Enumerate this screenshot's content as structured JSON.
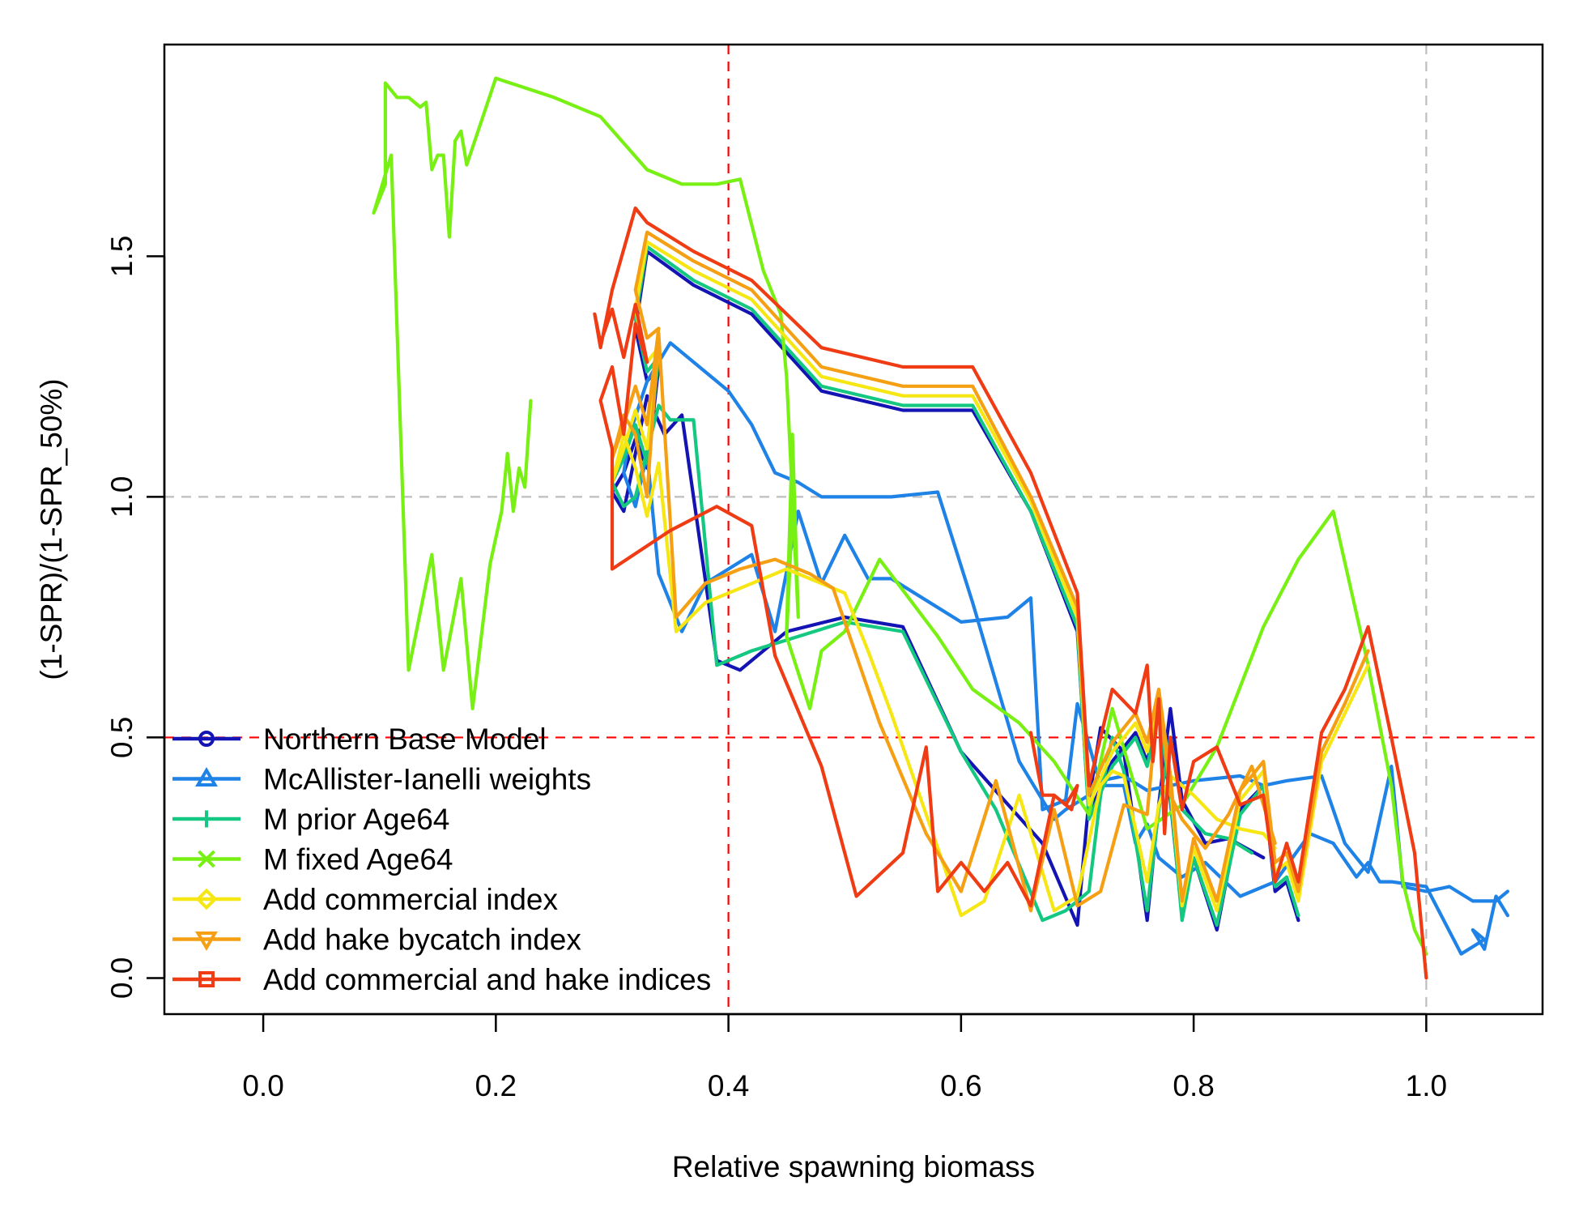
{
  "chart_data": {
    "type": "line",
    "title": "",
    "xlabel": "Relative spawning biomass",
    "ylabel": "(1-SPR)/(1-SPR_50%)",
    "xlim": [
      -0.085,
      1.1
    ],
    "ylim": [
      -0.075,
      1.94
    ],
    "xticks": [
      0.0,
      0.2,
      0.4,
      0.6,
      0.8,
      1.0
    ],
    "xtick_labels": [
      "0.0",
      "0.2",
      "0.4",
      "0.6",
      "0.8",
      "1.0"
    ],
    "yticks": [
      0.0,
      0.5,
      1.0,
      1.5
    ],
    "ytick_labels": [
      "0.0",
      "0.5",
      "1.0",
      "1.5"
    ],
    "grid": false,
    "reference_lines": [
      {
        "axis": "x",
        "value": 0.4,
        "color": "#ff0000",
        "style": "dashed"
      },
      {
        "axis": "y",
        "value": 0.5,
        "color": "#ff0000",
        "style": "dashed"
      },
      {
        "axis": "x",
        "value": 1.0,
        "color": "#bebebe",
        "style": "dashed"
      },
      {
        "axis": "y",
        "value": 1.0,
        "color": "#bebebe",
        "style": "dashed"
      }
    ],
    "legend_position": "bottom-left",
    "series": [
      {
        "name": "Northern Base Model",
        "color": "#1414b4",
        "marker": "circle",
        "x": [
          0.86,
          0.83,
          0.81,
          0.79,
          0.78,
          0.77,
          0.76,
          0.74,
          0.72,
          0.71,
          0.7,
          0.67,
          0.6,
          0.55,
          0.5,
          0.45,
          0.41,
          0.39,
          0.36,
          0.345,
          0.33,
          0.31,
          0.3,
          0.31,
          0.32,
          0.33,
          0.34,
          0.33,
          0.32,
          0.33,
          0.37,
          0.42,
          0.48,
          0.55,
          0.61,
          0.66,
          0.7,
          0.71,
          0.73,
          0.75,
          0.76,
          0.77,
          0.78,
          0.79,
          0.8,
          0.82,
          0.84,
          0.86,
          0.87,
          0.88,
          0.89
        ],
        "y": [
          0.25,
          0.29,
          0.28,
          0.37,
          0.56,
          0.36,
          0.12,
          0.47,
          0.52,
          0.37,
          0.11,
          0.28,
          0.47,
          0.73,
          0.75,
          0.72,
          0.64,
          0.66,
          1.17,
          1.13,
          1.21,
          0.97,
          1.01,
          1.05,
          1.12,
          1.06,
          1.27,
          1.24,
          1.35,
          1.51,
          1.44,
          1.38,
          1.22,
          1.18,
          1.18,
          0.97,
          0.72,
          0.34,
          0.45,
          0.51,
          0.45,
          0.55,
          0.37,
          0.13,
          0.25,
          0.1,
          0.35,
          0.4,
          0.18,
          0.2,
          0.12
        ]
      },
      {
        "name": "McAllister-Ianelli weights",
        "color": "#1e82e6",
        "marker": "triangle",
        "x": [
          1.07,
          1.06,
          1.05,
          1.04,
          1.05,
          1.03,
          1.0,
          0.97,
          0.96,
          0.95,
          0.94,
          0.92,
          0.9,
          0.87,
          0.84,
          0.81,
          0.79,
          0.77,
          0.76,
          0.75,
          0.74,
          0.72,
          0.7,
          0.69,
          0.67,
          0.66,
          0.64,
          0.6,
          0.56,
          0.54,
          0.52,
          0.5,
          0.48,
          0.46,
          0.44,
          0.42,
          0.38,
          0.36,
          0.34,
          0.33,
          0.32,
          0.31,
          0.315,
          0.33,
          0.35,
          0.4,
          0.42,
          0.44,
          0.46,
          0.48,
          0.54,
          0.58,
          0.61,
          0.65,
          0.68,
          0.69,
          0.71,
          0.72,
          0.74,
          0.76,
          0.78,
          0.8,
          0.84,
          0.86,
          0.88,
          0.91,
          0.93,
          0.95,
          0.97,
          0.98,
          1.0,
          1.02,
          1.04,
          1.06,
          1.07
        ],
        "y": [
          0.13,
          0.17,
          0.06,
          0.1,
          0.08,
          0.05,
          0.19,
          0.2,
          0.2,
          0.24,
          0.21,
          0.28,
          0.3,
          0.2,
          0.17,
          0.24,
          0.21,
          0.25,
          0.32,
          0.28,
          0.4,
          0.4,
          0.57,
          0.37,
          0.35,
          0.79,
          0.75,
          0.74,
          0.8,
          0.83,
          0.83,
          0.92,
          0.82,
          0.97,
          0.72,
          0.88,
          0.82,
          0.72,
          0.84,
          1.09,
          0.98,
          1.05,
          1.13,
          1.24,
          1.32,
          1.22,
          1.15,
          1.05,
          1.03,
          1.0,
          1.0,
          1.01,
          0.78,
          0.45,
          0.33,
          0.35,
          0.38,
          0.41,
          0.42,
          0.39,
          0.4,
          0.41,
          0.42,
          0.4,
          0.41,
          0.42,
          0.28,
          0.22,
          0.44,
          0.19,
          0.18,
          0.19,
          0.16,
          0.16,
          0.18
        ]
      },
      {
        "name": "M prior Age64",
        "color": "#14c882",
        "marker": "plus",
        "x": [
          0.85,
          0.83,
          0.81,
          0.79,
          0.78,
          0.77,
          0.76,
          0.74,
          0.73,
          0.72,
          0.71,
          0.69,
          0.67,
          0.63,
          0.6,
          0.55,
          0.5,
          0.46,
          0.42,
          0.39,
          0.37,
          0.35,
          0.34,
          0.32,
          0.31,
          0.3,
          0.31,
          0.32,
          0.33,
          0.34,
          0.33,
          0.32,
          0.33,
          0.37,
          0.42,
          0.48,
          0.55,
          0.61,
          0.66,
          0.7,
          0.71,
          0.73,
          0.75,
          0.76,
          0.77,
          0.78,
          0.79,
          0.8,
          0.82,
          0.84,
          0.86,
          0.87,
          0.88,
          0.89
        ],
        "y": [
          0.26,
          0.29,
          0.3,
          0.35,
          0.5,
          0.35,
          0.14,
          0.43,
          0.5,
          0.38,
          0.18,
          0.14,
          0.12,
          0.35,
          0.47,
          0.72,
          0.74,
          0.71,
          0.68,
          0.65,
          1.16,
          1.16,
          1.19,
          1.0,
          0.98,
          1.03,
          1.08,
          1.15,
          1.07,
          1.29,
          1.26,
          1.37,
          1.52,
          1.45,
          1.39,
          1.23,
          1.19,
          1.19,
          0.97,
          0.73,
          0.33,
          0.44,
          0.5,
          0.44,
          0.55,
          0.38,
          0.12,
          0.25,
          0.11,
          0.34,
          0.4,
          0.19,
          0.21,
          0.13
        ]
      },
      {
        "name": "M fixed Age64",
        "color": "#78f014",
        "marker": "cross",
        "x": [
          0.23,
          0.225,
          0.22,
          0.215,
          0.21,
          0.205,
          0.195,
          0.18,
          0.17,
          0.155,
          0.145,
          0.125,
          0.11,
          0.095,
          0.105,
          0.105,
          0.115,
          0.125,
          0.135,
          0.14,
          0.145,
          0.15,
          0.155,
          0.16,
          0.165,
          0.17,
          0.175,
          0.2,
          0.25,
          0.29,
          0.33,
          0.36,
          0.39,
          0.41,
          0.43,
          0.445,
          0.45,
          0.46,
          0.455,
          0.45,
          0.455,
          0.45,
          0.47,
          0.48,
          0.5,
          0.53,
          0.58,
          0.61,
          0.65,
          0.68,
          0.71,
          0.72,
          0.73,
          0.76,
          0.79,
          0.82,
          0.86,
          0.89,
          0.92,
          0.95,
          0.97,
          0.98,
          0.99,
          1.0
        ],
        "y": [
          1.2,
          1.02,
          1.06,
          0.97,
          1.09,
          0.97,
          0.86,
          0.56,
          0.83,
          0.64,
          0.88,
          0.64,
          1.71,
          1.59,
          1.65,
          1.86,
          1.83,
          1.83,
          1.81,
          1.82,
          1.68,
          1.71,
          1.71,
          1.54,
          1.74,
          1.76,
          1.69,
          1.87,
          1.83,
          1.79,
          1.68,
          1.65,
          1.65,
          1.66,
          1.47,
          1.38,
          1.25,
          0.75,
          1.13,
          0.72,
          0.97,
          0.71,
          0.56,
          0.68,
          0.72,
          0.87,
          0.71,
          0.6,
          0.53,
          0.45,
          0.34,
          0.45,
          0.56,
          0.31,
          0.36,
          0.48,
          0.73,
          0.87,
          0.97,
          0.65,
          0.4,
          0.2,
          0.1,
          0.05
        ]
      },
      {
        "name": "Add commercial index",
        "color": "#f5e614",
        "marker": "diamond",
        "x": [
          0.87,
          0.86,
          0.84,
          0.82,
          0.8,
          0.78,
          0.77,
          0.76,
          0.74,
          0.73,
          0.72,
          0.7,
          0.68,
          0.65,
          0.62,
          0.6,
          0.57,
          0.54,
          0.52,
          0.5,
          0.48,
          0.45,
          0.42,
          0.38,
          0.355,
          0.34,
          0.33,
          0.32,
          0.31,
          0.3,
          0.31,
          0.32,
          0.33,
          0.34,
          0.33,
          0.32,
          0.33,
          0.37,
          0.42,
          0.48,
          0.55,
          0.61,
          0.66,
          0.7,
          0.71,
          0.73,
          0.75,
          0.76,
          0.77,
          0.78,
          0.79,
          0.8,
          0.82,
          0.84,
          0.86,
          0.87,
          0.88,
          0.89,
          0.91,
          0.93,
          0.95
        ],
        "y": [
          0.27,
          0.3,
          0.31,
          0.33,
          0.38,
          0.42,
          0.36,
          0.2,
          0.42,
          0.43,
          0.4,
          0.17,
          0.14,
          0.38,
          0.16,
          0.13,
          0.34,
          0.55,
          0.68,
          0.8,
          0.82,
          0.85,
          0.82,
          0.78,
          0.72,
          1.07,
          0.96,
          1.06,
          1.13,
          1.03,
          1.1,
          1.18,
          1.1,
          1.31,
          1.28,
          1.39,
          1.53,
          1.47,
          1.41,
          1.25,
          1.21,
          1.21,
          0.99,
          0.75,
          0.36,
          0.47,
          0.53,
          0.47,
          0.58,
          0.4,
          0.15,
          0.27,
          0.14,
          0.37,
          0.43,
          0.22,
          0.24,
          0.16,
          0.45,
          0.55,
          0.65
        ]
      },
      {
        "name": "Add hake bycatch index",
        "color": "#f5a014",
        "marker": "triangle-down",
        "x": [
          0.87,
          0.85,
          0.83,
          0.81,
          0.79,
          0.78,
          0.77,
          0.76,
          0.74,
          0.72,
          0.7,
          0.68,
          0.66,
          0.63,
          0.6,
          0.57,
          0.53,
          0.49,
          0.47,
          0.44,
          0.41,
          0.38,
          0.355,
          0.34,
          0.33,
          0.32,
          0.31,
          0.3,
          0.31,
          0.32,
          0.33,
          0.34,
          0.33,
          0.32,
          0.33,
          0.37,
          0.42,
          0.48,
          0.55,
          0.61,
          0.66,
          0.7,
          0.71,
          0.73,
          0.75,
          0.76,
          0.77,
          0.78,
          0.79,
          0.8,
          0.82,
          0.84,
          0.86,
          0.87,
          0.88,
          0.89,
          0.91,
          0.93,
          0.95
        ],
        "y": [
          0.28,
          0.44,
          0.34,
          0.27,
          0.33,
          0.38,
          0.6,
          0.34,
          0.36,
          0.18,
          0.15,
          0.35,
          0.14,
          0.41,
          0.18,
          0.3,
          0.53,
          0.81,
          0.84,
          0.87,
          0.85,
          0.82,
          0.75,
          1.34,
          1.0,
          1.13,
          1.17,
          1.08,
          1.15,
          1.23,
          1.15,
          1.35,
          1.33,
          1.43,
          1.55,
          1.49,
          1.43,
          1.27,
          1.23,
          1.23,
          1.0,
          0.77,
          0.38,
          0.49,
          0.55,
          0.49,
          0.6,
          0.42,
          0.16,
          0.29,
          0.16,
          0.39,
          0.45,
          0.24,
          0.26,
          0.18,
          0.47,
          0.57,
          0.68
        ]
      },
      {
        "name": "Add commercial and hake indices",
        "color": "#f03c14",
        "marker": "square",
        "x": [
          0.66,
          0.67,
          0.68,
          0.69,
          0.7,
          0.695,
          0.68,
          0.66,
          0.64,
          0.62,
          0.6,
          0.58,
          0.57,
          0.55,
          0.51,
          0.48,
          0.44,
          0.42,
          0.39,
          0.35,
          0.3,
          0.3,
          0.29,
          0.3,
          0.31,
          0.32,
          0.33,
          0.32,
          0.31,
          0.3,
          0.29,
          0.285,
          0.29,
          0.3,
          0.32,
          0.33,
          0.37,
          0.42,
          0.48,
          0.55,
          0.61,
          0.66,
          0.7,
          0.71,
          0.72,
          0.73,
          0.75,
          0.76,
          0.765,
          0.77,
          0.775,
          0.78,
          0.79,
          0.8,
          0.82,
          0.84,
          0.86,
          0.87,
          0.88,
          0.89,
          0.91,
          0.93,
          0.95,
          0.97,
          0.99,
          1.0
        ],
        "y": [
          0.51,
          0.38,
          0.38,
          0.36,
          0.4,
          0.35,
          0.38,
          0.15,
          0.24,
          0.18,
          0.24,
          0.18,
          0.48,
          0.26,
          0.17,
          0.44,
          0.67,
          0.94,
          0.98,
          0.93,
          0.85,
          1.1,
          1.2,
          1.27,
          1.13,
          1.36,
          1.28,
          1.4,
          1.29,
          1.39,
          1.32,
          1.38,
          1.31,
          1.43,
          1.6,
          1.57,
          1.51,
          1.45,
          1.31,
          1.27,
          1.27,
          1.05,
          0.8,
          0.4,
          0.5,
          0.6,
          0.55,
          0.65,
          0.45,
          0.58,
          0.3,
          0.5,
          0.35,
          0.45,
          0.48,
          0.36,
          0.38,
          0.2,
          0.28,
          0.2,
          0.51,
          0.6,
          0.73,
          0.5,
          0.26,
          0.0
        ]
      }
    ]
  }
}
